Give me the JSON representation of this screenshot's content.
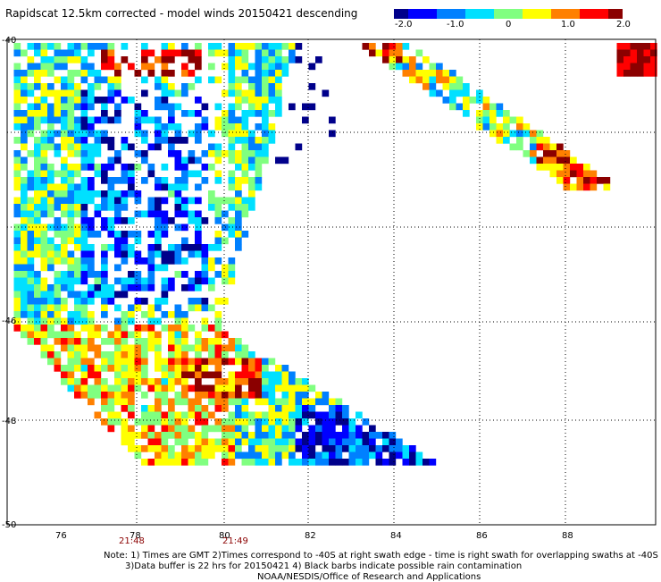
{
  "title": "Rapidscat 12.5km corrected - model winds 20150421 descending",
  "colorbar": {
    "labels": [
      "-2.0",
      "-1.0",
      "0",
      "1.0",
      "2.0"
    ],
    "colors": [
      "#00008b",
      "#0000ff",
      "#0080ff",
      "#00e0ff",
      "#80ff80",
      "#ffff00",
      "#ff8000",
      "#ff0000",
      "#8b0000"
    ]
  },
  "map": {
    "lon_ticks": [
      "76",
      "78",
      "80",
      "82",
      "84",
      "86",
      "88"
    ],
    "lat_ticks": [
      "-40",
      "-46",
      "-48",
      "-50"
    ],
    "times": [
      "21:48",
      "21:49"
    ]
  },
  "notes": [
    "Note: 1) Times are GMT 2)Times correspond to -40S at right swath edge - time is right swath for overlapping swaths at -40S",
    "3)Data buffer is 22 hrs for 20150421 4) Black barbs indicate possible rain contamination",
    "NOAA/NESDIS/Office of Research and Applications"
  ]
}
